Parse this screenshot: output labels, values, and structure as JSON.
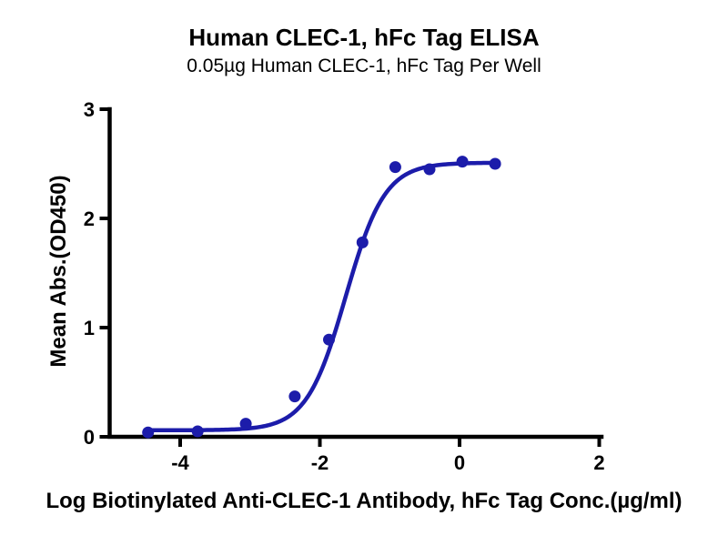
{
  "chart_data": {
    "type": "scatter",
    "title": "Human CLEC-1, hFc Tag ELISA",
    "subtitle": "0.05µg Human CLEC-1, hFc Tag Per Well",
    "xlabel": "Log Biotinylated Anti-CLEC-1 Antibody, hFc Tag Conc.(µg/ml)",
    "ylabel": "Mean Abs.(OD450)",
    "xlim": [
      -5,
      2.03
    ],
    "ylim": [
      0,
      3
    ],
    "x_ticks": [
      -4,
      -2,
      0,
      2
    ],
    "y_ticks": [
      0,
      1,
      2,
      3
    ],
    "grid": false,
    "legend": "none",
    "axis_color": "#000000",
    "background": "#ffffff",
    "series": [
      {
        "name": "Human CLEC-1, hFc Tag",
        "color": "#1c1caa",
        "marker": "circle",
        "points": [
          [
            -4.46,
            0.04
          ],
          [
            -3.75,
            0.05
          ],
          [
            -3.06,
            0.12
          ],
          [
            -2.36,
            0.37
          ],
          [
            -1.87,
            0.89
          ],
          [
            -1.39,
            1.78
          ],
          [
            -0.92,
            2.47
          ],
          [
            -0.43,
            2.45
          ],
          [
            0.04,
            2.52
          ],
          [
            0.51,
            2.5
          ]
        ],
        "fit": {
          "model": "4PL",
          "bottom": 0.06,
          "top": 2.51,
          "logEC50": -1.63,
          "hill": 1.55,
          "x_range": [
            -4.46,
            0.51
          ]
        }
      }
    ]
  }
}
